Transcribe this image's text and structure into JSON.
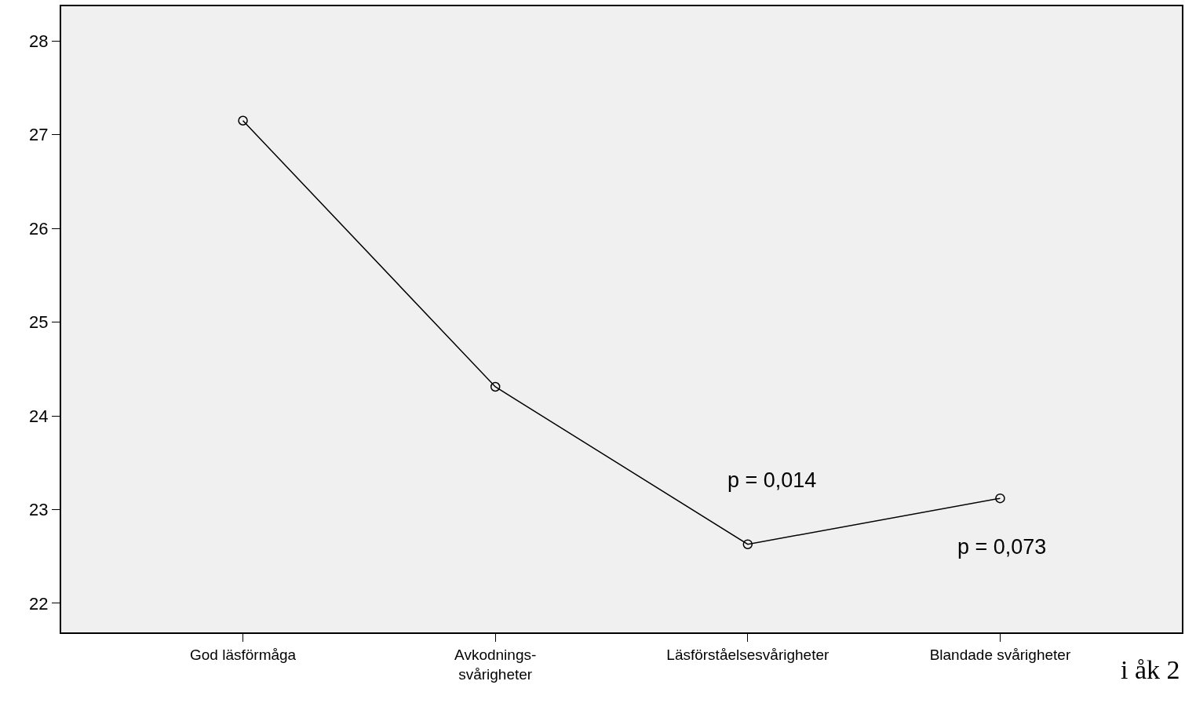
{
  "chart_data": {
    "type": "line",
    "categories": [
      "God läsförmåga",
      "Avkodnings-\nsvårigheter",
      "Läsförståelsesvårigheter",
      "Blandade svårigheter"
    ],
    "series": [
      {
        "color": "#000000",
        "values": [
          27.15,
          24.31,
          22.63,
          23.12
        ]
      }
    ],
    "ylim": [
      21.69,
      28.37
    ],
    "yticks": [
      22,
      23,
      24,
      25,
      26,
      27,
      28
    ],
    "marker": "circle",
    "line_style": "solid",
    "grid": false,
    "annotations": [
      "p = 0,014",
      "p = 0,073",
      "i åk 2"
    ]
  }
}
